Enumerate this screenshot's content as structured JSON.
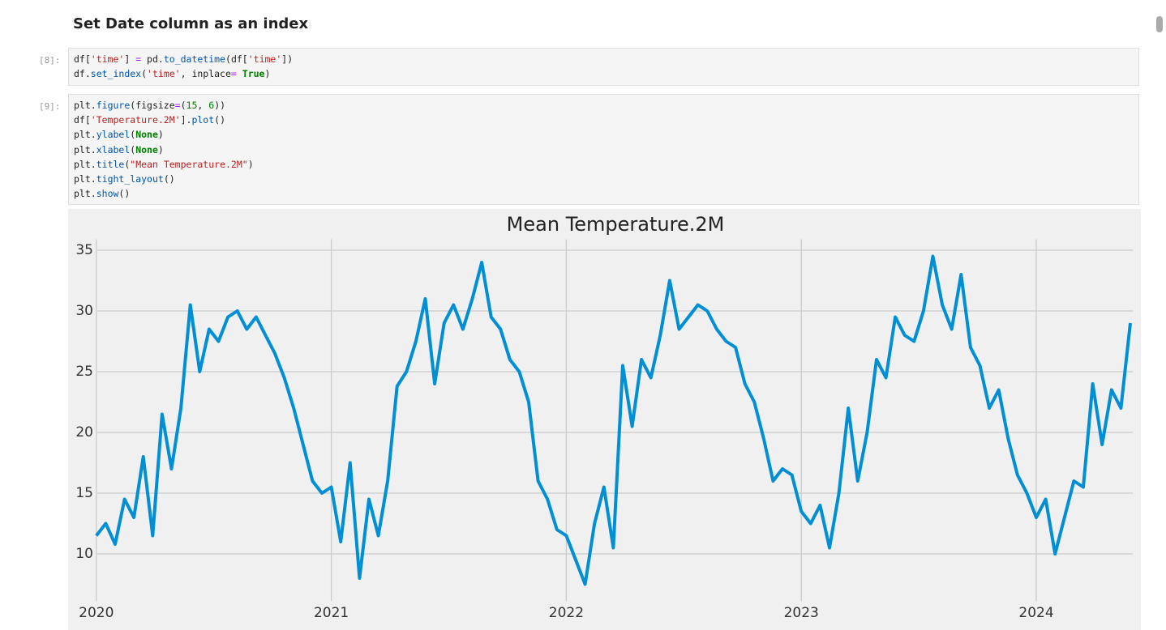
{
  "heading": "Set Date column as an index",
  "cells": [
    {
      "prompt": "[8]:",
      "lines": [
        "df['time'] = pd.to_datetime(df['time'])",
        "df.set_index('time', inplace= True)"
      ]
    },
    {
      "prompt": "[9]:",
      "lines": [
        "plt.figure(figsize=(15, 6))",
        "df['Temperature.2M'].plot()",
        "plt.ylabel(None)",
        "plt.xlabel(None)",
        "plt.title(\"Mean Temperature.2M\")",
        "plt.tight_layout()",
        "plt.show()"
      ]
    }
  ],
  "chart_data": {
    "type": "line",
    "title": "Mean Temperature.2M",
    "x": [
      2020,
      2020.04,
      2020.08,
      2020.12,
      2020.16,
      2020.2,
      2020.24,
      2020.28,
      2020.32,
      2020.36,
      2020.4,
      2020.44,
      2020.48,
      2020.52,
      2020.56,
      2020.6,
      2020.64,
      2020.68,
      2020.72,
      2020.76,
      2020.8,
      2020.84,
      2020.88,
      2020.92,
      2020.96,
      2021,
      2021.04,
      2021.08,
      2021.12,
      2021.16,
      2021.2,
      2021.24,
      2021.28,
      2021.32,
      2021.36,
      2021.4,
      2021.44,
      2021.48,
      2021.52,
      2021.56,
      2021.6,
      2021.64,
      2021.68,
      2021.72,
      2021.76,
      2021.8,
      2021.84,
      2021.88,
      2021.92,
      2021.96,
      2022,
      2022.04,
      2022.08,
      2022.12,
      2022.16,
      2022.2,
      2022.24,
      2022.28,
      2022.32,
      2022.36,
      2022.4,
      2022.44,
      2022.48,
      2022.52,
      2022.56,
      2022.6,
      2022.64,
      2022.68,
      2022.72,
      2022.76,
      2022.8,
      2022.84,
      2022.88,
      2022.92,
      2022.96,
      2023,
      2023.04,
      2023.08,
      2023.12,
      2023.16,
      2023.2,
      2023.24,
      2023.28,
      2023.32,
      2023.36,
      2023.4,
      2023.44,
      2023.48,
      2023.52,
      2023.56,
      2023.6,
      2023.64,
      2023.68,
      2023.72,
      2023.76,
      2023.8,
      2023.84,
      2023.88,
      2023.92,
      2023.96,
      2024,
      2024.04,
      2024.08,
      2024.12,
      2024.16,
      2024.2,
      2024.24,
      2024.28,
      2024.32,
      2024.36,
      2024.4
    ],
    "series": [
      {
        "name": "Temperature.2M",
        "color": "#008fd5",
        "values": [
          11.5,
          12.5,
          10.8,
          14.5,
          13.0,
          18.0,
          11.5,
          21.5,
          17.0,
          22.0,
          30.5,
          25.0,
          28.5,
          27.5,
          29.5,
          30.0,
          28.5,
          29.5,
          28.0,
          26.5,
          24.5,
          22.0,
          19.0,
          16.0,
          15.0,
          15.5,
          11.0,
          17.5,
          8.0,
          14.5,
          11.5,
          16.0,
          23.8,
          25.0,
          27.5,
          31.0,
          24.0,
          29.0,
          30.5,
          28.5,
          31.0,
          34.0,
          29.5,
          28.5,
          26.0,
          25.0,
          22.5,
          16.0,
          14.5,
          12.0,
          11.5,
          9.5,
          7.5,
          12.5,
          15.5,
          10.5,
          25.5,
          20.5,
          26.0,
          24.5,
          28.0,
          32.5,
          28.5,
          29.5,
          30.5,
          30.0,
          28.5,
          27.5,
          27.0,
          24.0,
          22.5,
          19.5,
          16.0,
          17.0,
          16.5,
          13.5,
          12.5,
          14.0,
          10.5,
          15.0,
          22.0,
          16.0,
          20.0,
          26.0,
          24.5,
          29.5,
          28.0,
          27.5,
          30.0,
          34.5,
          30.5,
          28.5,
          33.0,
          27.0,
          25.5,
          22.0,
          23.5,
          19.5,
          16.5,
          15.0,
          13.0,
          14.5,
          10.0,
          13.0,
          16.0,
          15.5,
          24.0,
          19.0,
          23.5,
          22.0,
          29.0
        ]
      }
    ],
    "xlim": [
      2019.88,
      2024.445
    ],
    "xticks": [
      2020,
      2021,
      2022,
      2023,
      2024
    ],
    "ylim": [
      6.1,
      35.9
    ],
    "yticks": [
      10,
      15,
      20,
      25,
      30,
      35
    ],
    "grid": true
  }
}
